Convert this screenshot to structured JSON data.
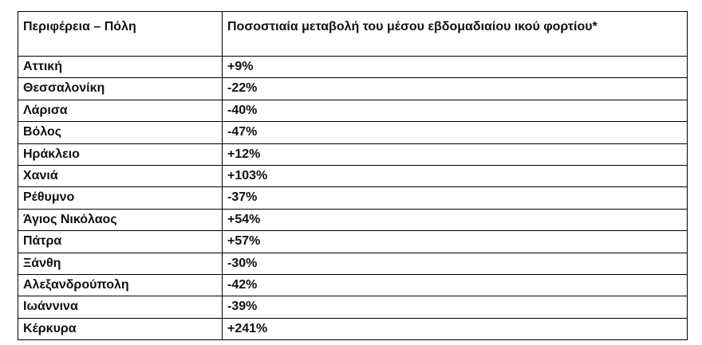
{
  "table": {
    "header": [
      "Περιφέρεια – Πόλη",
      "Ποσοστιαία μεταβολή του μέσου εβδομαδιαίου ικού φορτίου*"
    ],
    "rows": [
      [
        "Αττική",
        "+9%"
      ],
      [
        "Θεσσαλονίκη",
        "-22%"
      ],
      [
        "Λάρισα",
        "-40%"
      ],
      [
        "Βόλος",
        "-47%"
      ],
      [
        "Ηράκλειο",
        "+12%"
      ],
      [
        "Χανιά",
        "+103%"
      ],
      [
        "Ρέθυμνο",
        "-37%"
      ],
      [
        "Άγιος Νικόλαος",
        "+54%"
      ],
      [
        "Πάτρα",
        "+57%"
      ],
      [
        "Ξάνθη",
        "-30%"
      ],
      [
        "Αλεξανδρούπολη",
        "-42%"
      ],
      [
        "Ιωάννινα",
        "-39%"
      ],
      [
        "Κέρκυρα",
        "+241%"
      ]
    ]
  }
}
